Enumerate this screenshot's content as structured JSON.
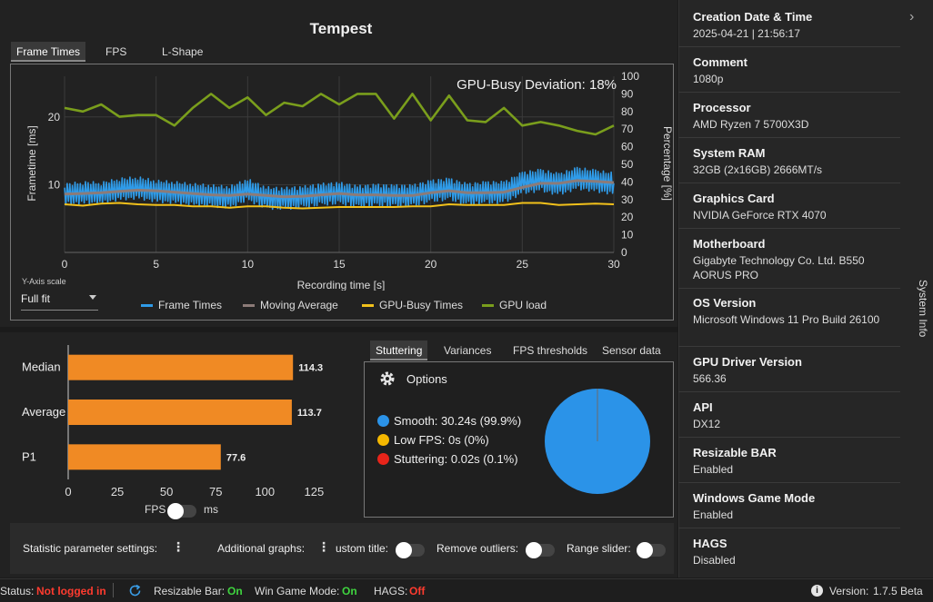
{
  "window": {
    "title": "Tempest"
  },
  "graph_tabs": [
    {
      "label": "Frame Times",
      "active": true
    },
    {
      "label": "FPS",
      "active": false
    },
    {
      "label": "L-Shape",
      "active": false
    }
  ],
  "chart_data": {
    "type": "line",
    "annotation": "GPU-Busy Deviation: 18%",
    "xlabel": "Recording time [s]",
    "ylabel_left": "Frametime [ms]",
    "ylabel_right": "Percentage [%]",
    "xlim": [
      0,
      30
    ],
    "ylim_left": [
      0,
      26
    ],
    "ylim_right": [
      0,
      100
    ],
    "x_ticks": [
      "0",
      "5",
      "10",
      "15",
      "20",
      "25",
      "30"
    ],
    "y_left_ticks": [
      "10",
      "20"
    ],
    "y_right_ticks": [
      "0",
      "10",
      "20",
      "30",
      "40",
      "50",
      "60",
      "70",
      "80",
      "90",
      "100"
    ],
    "legend": [
      "Frame Times",
      "Moving Average",
      "GPU-Busy Times",
      "GPU load"
    ],
    "series": [
      {
        "name": "Frame Times",
        "color": "#2f9be8",
        "x": [
          0,
          1,
          2,
          3,
          4,
          5,
          6,
          7,
          8,
          9,
          10,
          11,
          12,
          13,
          14,
          15,
          16,
          17,
          18,
          19,
          20,
          21,
          22,
          23,
          24,
          25,
          26,
          27,
          28,
          29,
          30
        ],
        "values": [
          8.6,
          8.9,
          8.8,
          9.4,
          9.6,
          9.1,
          8.9,
          8.6,
          8.4,
          8.2,
          9.3,
          8.1,
          8.0,
          8.2,
          8.6,
          8.8,
          8.3,
          8.5,
          8.4,
          8.4,
          9.1,
          9.4,
          8.6,
          8.9,
          8.9,
          10.3,
          10.7,
          10.1,
          11.0,
          10.6,
          10.2
        ]
      },
      {
        "name": "Moving Average",
        "color": "#8c7b78",
        "x": [
          0,
          1,
          2,
          3,
          4,
          5,
          6,
          7,
          8,
          9,
          10,
          11,
          12,
          13,
          14,
          15,
          16,
          17,
          18,
          19,
          20,
          21,
          22,
          23,
          24,
          25,
          26,
          27,
          28,
          29,
          30
        ],
        "values": [
          8.6,
          8.7,
          8.8,
          9.0,
          9.2,
          9.1,
          8.9,
          8.7,
          8.5,
          8.4,
          8.6,
          8.4,
          8.2,
          8.3,
          8.5,
          8.7,
          8.5,
          8.5,
          8.4,
          8.4,
          8.8,
          9.1,
          8.8,
          8.8,
          8.9,
          9.6,
          10.2,
          10.2,
          10.6,
          10.5,
          10.3
        ]
      },
      {
        "name": "GPU-Busy Times",
        "color": "#f2c11b",
        "x": [
          0,
          1,
          2,
          3,
          4,
          5,
          6,
          7,
          8,
          9,
          10,
          11,
          12,
          13,
          14,
          15,
          16,
          17,
          18,
          19,
          20,
          21,
          22,
          23,
          24,
          25,
          26,
          27,
          28,
          29,
          30
        ],
        "values": [
          7.1,
          6.9,
          7.2,
          7.3,
          7.1,
          7.0,
          7.0,
          6.8,
          6.8,
          6.6,
          6.8,
          6.8,
          6.6,
          6.5,
          6.6,
          6.7,
          6.7,
          6.7,
          6.7,
          6.8,
          6.8,
          7.1,
          7.0,
          7.0,
          7.0,
          7.3,
          7.3,
          7.0,
          7.1,
          7.2,
          7.1
        ]
      },
      {
        "name": "GPU load",
        "color": "#7a9e1c",
        "x": [
          0,
          1,
          2,
          3,
          4,
          5,
          6,
          7,
          8,
          9,
          10,
          11,
          12,
          13,
          14,
          15,
          16,
          17,
          18,
          19,
          20,
          21,
          22,
          23,
          24,
          25,
          26,
          27,
          28,
          29,
          30
        ],
        "values": [
          82,
          80,
          84,
          77,
          78,
          78,
          72,
          82,
          90,
          82,
          88,
          78,
          85,
          83,
          90,
          84,
          90,
          90,
          76,
          90,
          75,
          89,
          75,
          74,
          82,
          72,
          74,
          72,
          69,
          67,
          72
        ]
      }
    ]
  },
  "yaxis_scale": {
    "label": "Y-Axis scale",
    "value": "Full fit"
  },
  "stats_chart": {
    "type": "bar",
    "categories": [
      "Median",
      "Average",
      "P1"
    ],
    "values": [
      114.3,
      113.7,
      77.6
    ],
    "value_labels": [
      "114.3",
      "113.7",
      "77.6"
    ],
    "x_ticks": [
      "0",
      "25",
      "50",
      "75",
      "100",
      "125"
    ],
    "xlim": [
      0,
      135
    ],
    "bar_color": "#f08a24"
  },
  "fps_ms_toggle": {
    "left_label": "FPS",
    "right_label": "ms"
  },
  "stat_tabs": [
    {
      "label": "Stuttering",
      "active": true
    },
    {
      "label": "Variances",
      "active": false
    },
    {
      "label": "FPS thresholds",
      "active": false
    },
    {
      "label": "Sensor data",
      "active": false
    }
  ],
  "stuttering": {
    "options_label": "Options",
    "items": [
      {
        "label": "Smooth:  30.24s (99.9%)",
        "color": "#2b93e8",
        "value": 99.9
      },
      {
        "label": "Low FPS:  0s (0%)",
        "color": "#f5b800",
        "value": 0
      },
      {
        "label": "Stuttering:  0.02s (0.1%)",
        "color": "#e8241a",
        "value": 0.1
      }
    ],
    "pie_color": "#2b93e8"
  },
  "settings": {
    "statistic_label": "Statistic parameter settings:",
    "additional_label": "Additional graphs:",
    "custom_title_label": "ustom title:",
    "remove_outliers_label": "Remove outliers:",
    "range_slider_label": "Range slider:"
  },
  "system_info": {
    "vertical_label": "System Info",
    "items": [
      {
        "label": "Creation Date & Time",
        "value": "2025-04-21  |  21:56:17"
      },
      {
        "label": "Comment",
        "value": "1080p"
      },
      {
        "label": "Processor",
        "value": "AMD Ryzen 7 5700X3D"
      },
      {
        "label": "System RAM",
        "value": "32GB (2x16GB) 2666MT/s"
      },
      {
        "label": "Graphics Card",
        "value": "NVIDIA GeForce RTX 4070"
      },
      {
        "label": "Motherboard",
        "value": "Gigabyte Technology Co. Ltd. B550 AORUS PRO"
      },
      {
        "label": "OS Version",
        "value": "Microsoft Windows 11 Pro Build 26100"
      },
      {
        "label": "GPU Driver Version",
        "value": "566.36"
      },
      {
        "label": "API",
        "value": "DX12"
      },
      {
        "label": "Resizable BAR",
        "value": "Enabled"
      },
      {
        "label": "Windows Game Mode",
        "value": "Enabled"
      },
      {
        "label": "HAGS",
        "value": "Disabled"
      }
    ]
  },
  "status_bar": {
    "status_label": "Status:",
    "status_value": "Not logged in",
    "rebar_label": "Resizable Bar:",
    "rebar_value": "On",
    "gamemode_label": "Win Game Mode:",
    "gamemode_value": "On",
    "hags_label": "HAGS:",
    "hags_value": "Off",
    "version_label": "Version:",
    "version_value": "1.7.5 Beta",
    "colors": {
      "error": "#ff3b2f",
      "ok": "#3fd43f"
    }
  }
}
